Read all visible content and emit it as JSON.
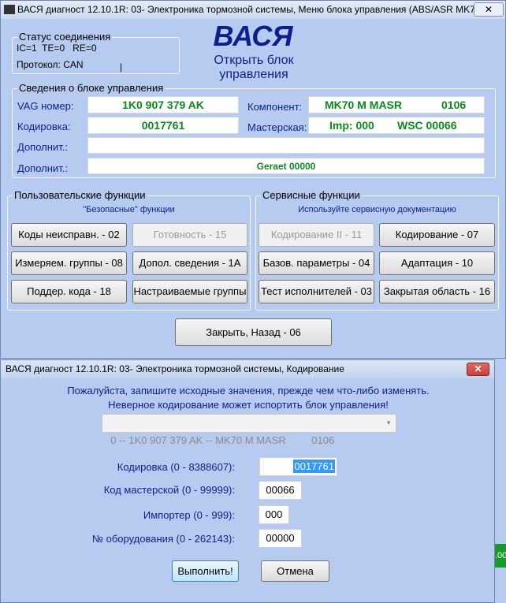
{
  "main": {
    "title": "ВАСЯ диагност 12.10.1R: 03- Электроника тормозной системы,  Меню блока управления (ABS/ASR MK7...",
    "logo": "ВАСЯ",
    "open_label": "Открыть блок управления",
    "status": {
      "title": "Статус соединения",
      "line1": "IC=1  TE=0   RE=0",
      "protocol": "Протокол: CAN",
      "cursor": "|"
    },
    "info": {
      "title": "Сведения о блоке управления",
      "vag_label": "VAG номер:",
      "vag": "1K0 907 379 AK",
      "component_label": "Компонент:",
      "component_name": "MK70 M MASR",
      "component_ver": "0106",
      "coding_label": "Кодировка:",
      "coding": "0017761",
      "workshop_label": "Мастерская:",
      "imp": "Imp: 000",
      "wsc": "WSC 00066",
      "extra1_label": "Дополнит.:",
      "extra1": "",
      "extra2_label": "Дополнит.:",
      "extra2": "Geraet 00000"
    },
    "user_funcs": {
      "title": "Пользовательские функции",
      "subtitle": "\"Безопасные\" функции",
      "buttons": [
        "Коды неисправн. - 02",
        "Готовность - 15",
        "Измеряем. группы - 08",
        "Допол. сведения - 1A",
        "Поддер. кода - 18",
        "Настраиваемые группы"
      ]
    },
    "service_funcs": {
      "title": "Сервисные функции",
      "subtitle": "Используйте сервисную документацию",
      "buttons": [
        "Кодирование II - 11",
        "Кодирование - 07",
        "Базов. параметры - 04",
        "Адаптация - 10",
        "Тест исполнителей - 03",
        "Закрытая область - 16"
      ]
    },
    "close_button": "Закрыть, Назад - 06"
  },
  "dialog": {
    "title": "ВАСЯ диагност 12.10.1R: 03- Электроника тормозной системы,  Кодирование",
    "warning1": "Пожалуйста, запишите исходные значения, прежде чем что-либо изменять.",
    "warning2": "Неверное кодирование может испортить блок управления!",
    "select_value": "0 -- 1K0 907 379 AK -- MK70 M MASR         0106",
    "fields": [
      {
        "label": "Кодировка (0 - 8388607):",
        "value": "0017761"
      },
      {
        "label": "Код мастерской (0 - 99999):",
        "value": "00066"
      },
      {
        "label": "Импортер (0 - 999):",
        "value": "000"
      },
      {
        "label": "№ оборудования (0 - 262143):",
        "value": "00000"
      }
    ],
    "ok_button": "Выполнить!",
    "cancel_button": "Отмена"
  },
  "background_fragment": ".00",
  "colors": {
    "window_bg": "#b6cbef",
    "value_green": "#0a8a1a",
    "label_blue": "#0b1f8a",
    "logo_blue": "#0d1f8c",
    "close_red": "#c8413a"
  }
}
